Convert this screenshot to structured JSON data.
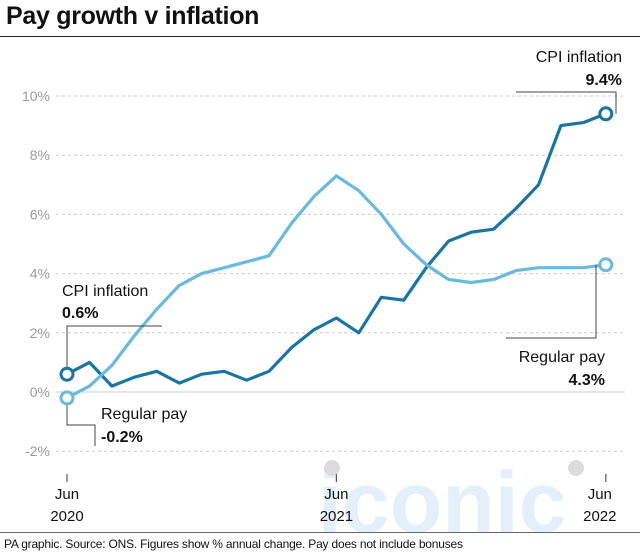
{
  "title": "Pay growth v inflation",
  "footer": "PA graphic. Source: ONS. Figures show % annual change. Pay does not include bonuses",
  "colors": {
    "cpi": "#1b74a4",
    "pay": "#6bb9dd",
    "grid": "#cccccc",
    "axis": "#9a9a9a"
  },
  "watermark": "iconic",
  "chart_data": {
    "type": "line",
    "title": "Pay growth v inflation",
    "ylim": [
      -2,
      10
    ],
    "y_ticks": [
      -2,
      0,
      2,
      4,
      6,
      8,
      10
    ],
    "y_tick_labels": [
      "-2%",
      "0%",
      "2%",
      "4%",
      "6%",
      "8%",
      "10%"
    ],
    "x_ticks": [
      {
        "month": 0,
        "line1": "Jun",
        "line2": "2020"
      },
      {
        "month": 12,
        "line1": "Jun",
        "line2": "2021"
      },
      {
        "month": 24,
        "line1": "Jun",
        "line2": "2022"
      }
    ],
    "grid": true,
    "series": [
      {
        "name": "CPI inflation",
        "color": "#1b74a4",
        "x": [
          0,
          1,
          2,
          3,
          4,
          5,
          6,
          7,
          8,
          9,
          10,
          11,
          12,
          13,
          14,
          15,
          16,
          17,
          18,
          19,
          20,
          21,
          22,
          23,
          24
        ],
        "values": [
          0.6,
          1.0,
          0.2,
          0.5,
          0.7,
          0.3,
          0.6,
          0.7,
          0.4,
          0.7,
          1.5,
          2.1,
          2.5,
          2.0,
          3.2,
          3.1,
          4.2,
          5.1,
          5.4,
          5.5,
          6.2,
          7.0,
          9.0,
          9.1,
          9.4
        ]
      },
      {
        "name": "Regular pay",
        "color": "#6bb9dd",
        "x": [
          0,
          1,
          2,
          3,
          4,
          5,
          6,
          7,
          8,
          9,
          10,
          11,
          12,
          13,
          14,
          15,
          16,
          17,
          18,
          19,
          20,
          21,
          22,
          23,
          24
        ],
        "values": [
          -0.2,
          0.2,
          0.9,
          1.9,
          2.8,
          3.6,
          4.0,
          4.2,
          4.4,
          4.6,
          5.7,
          6.6,
          7.3,
          6.8,
          6.0,
          5.0,
          4.3,
          3.8,
          3.7,
          3.8,
          4.1,
          4.2,
          4.2,
          4.2,
          4.3
        ]
      }
    ],
    "annotations": [
      {
        "series": "CPI inflation",
        "where": "start",
        "name": "CPI inflation",
        "value": "0.6%"
      },
      {
        "series": "Regular pay",
        "where": "start",
        "name": "Regular pay",
        "value": "-0.2%"
      },
      {
        "series": "CPI inflation",
        "where": "end",
        "name": "CPI inflation",
        "value": "9.4%"
      },
      {
        "series": "Regular pay",
        "where": "end",
        "name": "Regular pay",
        "value": "4.3%"
      }
    ]
  }
}
